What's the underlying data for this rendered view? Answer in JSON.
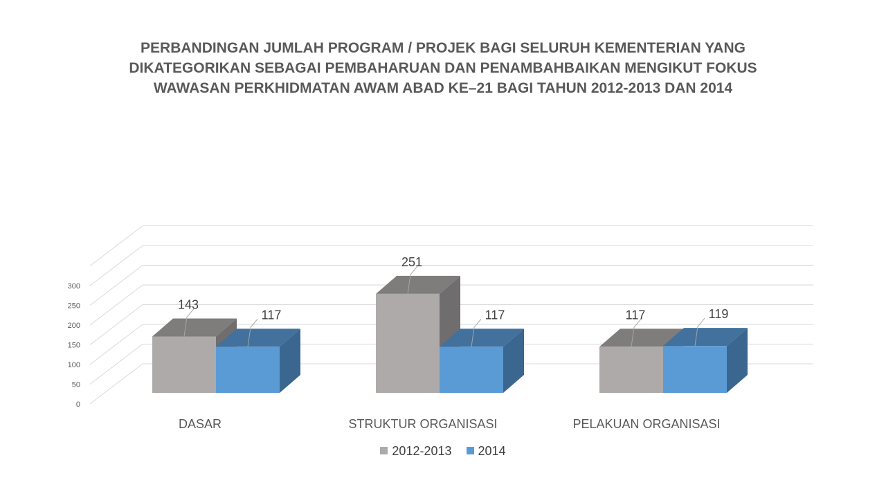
{
  "chart_data": {
    "type": "bar",
    "title_lines": [
      "PERBANDINGAN JUMLAH PROGRAM / PROJEK BAGI SELURUH KEMENTERIAN YANG",
      "DIKATEGORIKAN SEBAGAI PEMBAHARUAN DAN PENAMBAHBAIKAN MENGIKUT FOKUS",
      "WAWASAN PERKHIDMATAN AWAM ABAD KE–21 BAGI TAHUN 2012-2013 DAN 2014"
    ],
    "categories": [
      "DASAR",
      "STRUKTUR ORGANISASI",
      "PELAKUAN ORGANISASI"
    ],
    "series": [
      {
        "name": "2012-2013",
        "values": [
          143,
          251,
          117
        ],
        "color": "#aeaaaa",
        "top_color": "#7f7c7c",
        "side_color": "#6f6d6d"
      },
      {
        "name": "2014",
        "values": [
          117,
          117,
          119
        ],
        "color": "#5b9bd5",
        "top_color": "#41719c",
        "side_color": "#3a6690"
      }
    ],
    "yticks": [
      0,
      50,
      100,
      150,
      200,
      250,
      300
    ],
    "ylim": [
      0,
      300
    ],
    "grid": true,
    "legend_position": "bottom",
    "style": "3d-clustered-column"
  }
}
